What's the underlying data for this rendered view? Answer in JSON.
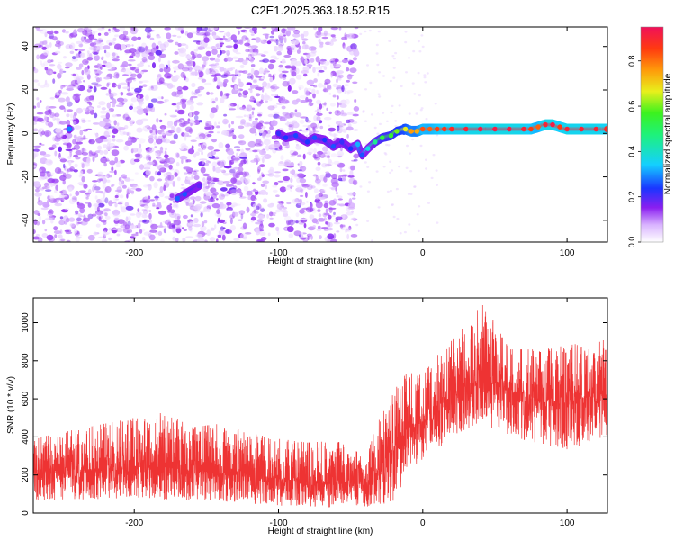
{
  "colors": {
    "snr_line": "#ee3333",
    "ridge_sequence": [
      "#7a1cf0",
      "#2a57ff",
      "#17d8e8",
      "#26e85a",
      "#d8e81c",
      "#ff9a0a",
      "#ee2222"
    ]
  },
  "chart_data": [
    {
      "type": "heatmap",
      "title": "C2E1.2025.363.18.52.R15",
      "xlabel": "Height of straight line (km)",
      "ylabel": "Frequency (Hz)",
      "xlim": [
        -270,
        128
      ],
      "ylim": [
        -50,
        49
      ],
      "xticks": [
        -200,
        -100,
        0,
        100
      ],
      "xtick_labels": [
        "-200",
        "-100",
        "0",
        "100"
      ],
      "yticks": [
        -40,
        -20,
        0,
        20,
        40
      ],
      "ytick_labels": [
        "-40",
        "-20",
        "0",
        "20",
        "40"
      ],
      "colorbar": {
        "label": "Normalized spectral amplitude",
        "range": [
          0.0,
          0.95
        ],
        "ticks": [
          0.0,
          0.2,
          0.4,
          0.6,
          0.8
        ],
        "tick_labels": [
          "0.0",
          "0.2",
          "0.4",
          "0.6",
          "0.8"
        ]
      },
      "noise_region": {
        "x_from": -270,
        "x_to": -46,
        "typical_amplitude": 0.05
      },
      "ridge": [
        {
          "x": -245,
          "freq": 2,
          "amp": 0.25
        },
        {
          "x": -170,
          "freq": -30,
          "amp": 0.23
        },
        {
          "x": -165,
          "freq": -28,
          "amp": 0.22
        },
        {
          "x": -155,
          "freq": -24,
          "amp": 0.15
        },
        {
          "x": -100,
          "freq": 0,
          "amp": 0.18
        },
        {
          "x": -95,
          "freq": -2,
          "amp": 0.2
        },
        {
          "x": -88,
          "freq": -1,
          "amp": 0.21
        },
        {
          "x": -80,
          "freq": -4,
          "amp": 0.2
        },
        {
          "x": -75,
          "freq": -2,
          "amp": 0.22
        },
        {
          "x": -68,
          "freq": -3,
          "amp": 0.2
        },
        {
          "x": -62,
          "freq": -6,
          "amp": 0.22
        },
        {
          "x": -56,
          "freq": -4,
          "amp": 0.18
        },
        {
          "x": -50,
          "freq": -7,
          "amp": 0.2
        },
        {
          "x": -45,
          "freq": -5,
          "amp": 0.28
        },
        {
          "x": -42,
          "freq": -10,
          "amp": 0.22
        },
        {
          "x": -38,
          "freq": -7,
          "amp": 0.32
        },
        {
          "x": -33,
          "freq": -4,
          "amp": 0.4
        },
        {
          "x": -28,
          "freq": -2,
          "amp": 0.48
        },
        {
          "x": -22,
          "freq": -1,
          "amp": 0.5
        },
        {
          "x": -18,
          "freq": 1,
          "amp": 0.55
        },
        {
          "x": -12,
          "freq": 2,
          "amp": 0.62
        },
        {
          "x": -8,
          "freq": 1,
          "amp": 0.72
        },
        {
          "x": -4,
          "freq": 1,
          "amp": 0.7
        },
        {
          "x": 0,
          "freq": 2,
          "amp": 0.82
        },
        {
          "x": 5,
          "freq": 2,
          "amp": 0.8
        },
        {
          "x": 10,
          "freq": 2,
          "amp": 0.84
        },
        {
          "x": 15,
          "freq": 2,
          "amp": 0.86
        },
        {
          "x": 20,
          "freq": 2,
          "amp": 0.88
        },
        {
          "x": 30,
          "freq": 2,
          "amp": 0.9
        },
        {
          "x": 40,
          "freq": 2,
          "amp": 0.92
        },
        {
          "x": 50,
          "freq": 2,
          "amp": 0.92
        },
        {
          "x": 60,
          "freq": 2,
          "amp": 0.92
        },
        {
          "x": 70,
          "freq": 2,
          "amp": 0.9
        },
        {
          "x": 75,
          "freq": 2,
          "amp": 0.85
        },
        {
          "x": 80,
          "freq": 3,
          "amp": 0.8
        },
        {
          "x": 85,
          "freq": 4,
          "amp": 0.9
        },
        {
          "x": 90,
          "freq": 4,
          "amp": 0.92
        },
        {
          "x": 95,
          "freq": 3,
          "amp": 0.85
        },
        {
          "x": 100,
          "freq": 2,
          "amp": 0.9
        },
        {
          "x": 110,
          "freq": 2,
          "amp": 0.9
        },
        {
          "x": 120,
          "freq": 2,
          "amp": 0.9
        },
        {
          "x": 128,
          "freq": 2,
          "amp": 0.88
        }
      ]
    },
    {
      "type": "line",
      "title": "",
      "xlabel": "Height of straight line (km)",
      "ylabel": "SNR (10 * v/v)",
      "xlim": [
        -270,
        128
      ],
      "ylim": [
        0,
        1130
      ],
      "xticks": [
        -200,
        -100,
        0,
        100
      ],
      "xtick_labels": [
        "-200",
        "-100",
        "0",
        "100"
      ],
      "yticks": [
        0,
        200,
        400,
        600,
        800,
        1000
      ],
      "ytick_labels": [
        "0",
        "200",
        "400",
        "600",
        "800",
        "1000"
      ],
      "series": [
        {
          "name": "SNR",
          "envelope": [
            {
              "x": -270,
              "low": 60,
              "mean": 210,
              "high": 390
            },
            {
              "x": -240,
              "low": 70,
              "mean": 230,
              "high": 440
            },
            {
              "x": -200,
              "low": 80,
              "mean": 240,
              "high": 500
            },
            {
              "x": -180,
              "low": 70,
              "mean": 240,
              "high": 540
            },
            {
              "x": -160,
              "low": 70,
              "mean": 220,
              "high": 450
            },
            {
              "x": -140,
              "low": 60,
              "mean": 210,
              "high": 470
            },
            {
              "x": -120,
              "low": 50,
              "mean": 200,
              "high": 420
            },
            {
              "x": -100,
              "low": 40,
              "mean": 180,
              "high": 390
            },
            {
              "x": -80,
              "low": 30,
              "mean": 160,
              "high": 370
            },
            {
              "x": -60,
              "low": 30,
              "mean": 160,
              "high": 380
            },
            {
              "x": -40,
              "low": 30,
              "mean": 150,
              "high": 300
            },
            {
              "x": -35,
              "low": 20,
              "mean": 180,
              "high": 420
            },
            {
              "x": -20,
              "low": 60,
              "mean": 350,
              "high": 640
            },
            {
              "x": -10,
              "low": 180,
              "mean": 430,
              "high": 760
            },
            {
              "x": 0,
              "low": 280,
              "mean": 480,
              "high": 720
            },
            {
              "x": 10,
              "low": 330,
              "mean": 560,
              "high": 840
            },
            {
              "x": 25,
              "low": 420,
              "mean": 640,
              "high": 940
            },
            {
              "x": 40,
              "low": 470,
              "mean": 700,
              "high": 1120
            },
            {
              "x": 50,
              "low": 440,
              "mean": 680,
              "high": 1000
            },
            {
              "x": 60,
              "low": 410,
              "mean": 650,
              "high": 860
            },
            {
              "x": 80,
              "low": 360,
              "mean": 600,
              "high": 860
            },
            {
              "x": 100,
              "low": 330,
              "mean": 580,
              "high": 880
            },
            {
              "x": 115,
              "low": 370,
              "mean": 610,
              "high": 900
            },
            {
              "x": 128,
              "low": 400,
              "mean": 620,
              "high": 910
            }
          ]
        }
      ]
    }
  ]
}
